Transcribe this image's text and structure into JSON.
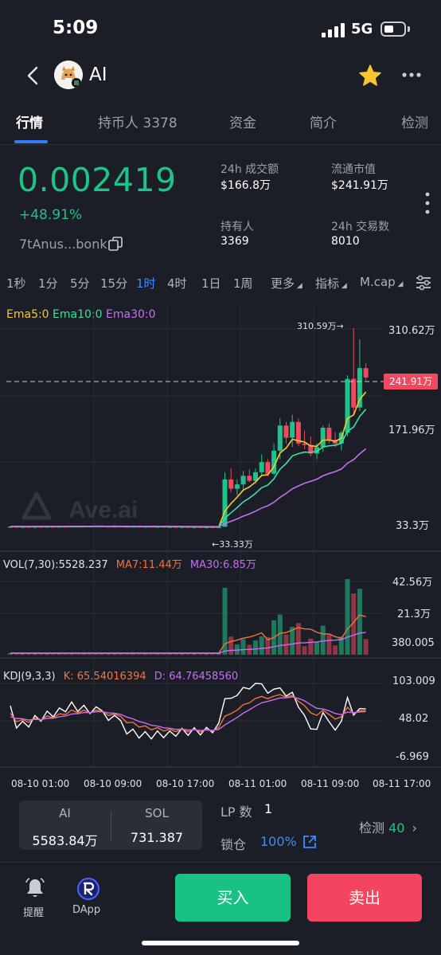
{
  "status": {
    "time": "5:09",
    "network": "5G"
  },
  "header": {
    "token": "AI",
    "icons": [
      "back-arrow-icon",
      "star-icon",
      "more-icon"
    ]
  },
  "tabs": [
    "行情",
    "持币人 3378",
    "资金",
    "简介",
    "检测"
  ],
  "summary": {
    "price": "0.002419",
    "change": "+48.91%",
    "address": "7tAnus...bonk",
    "stats": [
      {
        "label": "24h 成交额",
        "value": "$166.8万"
      },
      {
        "label": "流通市值",
        "value": "$241.91万"
      },
      {
        "label": "持有人",
        "value": "3369"
      },
      {
        "label": "24h 交易数",
        "value": "8010"
      }
    ]
  },
  "intervals": [
    "1秒",
    "1分",
    "5分",
    "15分",
    "1时",
    "4时",
    "1日",
    "1周",
    "更多",
    "指标",
    "M.cap"
  ],
  "active_interval": "1时",
  "colors": {
    "green": "#1fc28a",
    "red": "#f0485e",
    "blue": "#3d8bff",
    "ema5": "#f5c732",
    "ema10": "#38e0a4",
    "ema30": "#c56ff0",
    "ma7": "#f2733c",
    "ma30": "#c56ff0"
  },
  "chart": {
    "watermark": "Ave.ai",
    "legend": {
      "ema5": "Ema5:0",
      "ema10": "Ema10:0",
      "ema30": "Ema30:0"
    },
    "price_axis": [
      "310.62万",
      "171.96万",
      "33.3万"
    ],
    "current_tag": "241.91万",
    "high_marker": "310.59万→",
    "low_marker": "←33.33万",
    "vol_legend": {
      "vol": "VOL(7,30):5528.237",
      "ma7": "MA7:11.44万",
      "ma30": "MA30:6.85万"
    },
    "vol_axis": [
      "42.56万",
      "21.3万",
      "380.005"
    ],
    "kdj_legend": {
      "kdj": "KDJ(9,3,3)",
      "k": "K:  65.54016394",
      "d": "D:  64.76458560"
    },
    "kdj_axis": [
      "103.009",
      "48.02",
      "-6.969"
    ],
    "time_axis": [
      "08-10 01:00",
      "08-10 09:00",
      "08-10 17:00",
      "08-11 01:00",
      "08-11 09:00",
      "08-11 17:00"
    ]
  },
  "chart_data": {
    "type": "candlestick",
    "y_unit": "万 (market cap)",
    "x_labels": [
      "08-10 01:00",
      "08-10 09:00",
      "08-10 17:00",
      "08-11 01:00",
      "08-11 09:00",
      "08-11 17:00"
    ],
    "candles": [
      [
        34.0,
        34.6,
        33.8,
        34.4
      ],
      [
        34.4,
        34.8,
        33.9,
        34.0
      ],
      [
        34.0,
        34.5,
        33.7,
        34.3
      ],
      [
        34.3,
        34.7,
        33.9,
        34.1
      ],
      [
        34.1,
        34.6,
        33.8,
        34.4
      ],
      [
        34.4,
        34.9,
        34.0,
        34.2
      ],
      [
        34.2,
        34.6,
        33.9,
        34.5
      ],
      [
        34.5,
        35.0,
        34.1,
        34.3
      ],
      [
        34.3,
        34.8,
        33.9,
        34.6
      ],
      [
        34.6,
        35.0,
        34.2,
        34.4
      ],
      [
        34.4,
        34.9,
        34.0,
        34.7
      ],
      [
        34.7,
        35.2,
        34.3,
        34.5
      ],
      [
        34.5,
        35.0,
        34.1,
        34.8
      ],
      [
        34.8,
        35.3,
        34.4,
        34.6
      ],
      [
        34.6,
        35.1,
        34.2,
        34.9
      ],
      [
        34.9,
        35.3,
        34.5,
        34.7
      ],
      [
        34.7,
        35.1,
        34.3,
        34.5
      ],
      [
        34.5,
        34.9,
        34.1,
        34.8
      ],
      [
        34.8,
        35.2,
        34.4,
        34.6
      ],
      [
        34.6,
        35.0,
        34.2,
        34.4
      ],
      [
        34.4,
        34.8,
        34.0,
        34.6
      ],
      [
        34.6,
        35.0,
        34.2,
        34.3
      ],
      [
        34.3,
        34.7,
        33.9,
        34.5
      ],
      [
        34.5,
        34.9,
        34.1,
        34.2
      ],
      [
        34.2,
        34.6,
        33.8,
        34.4
      ],
      [
        34.4,
        34.8,
        34.0,
        34.1
      ],
      [
        34.1,
        34.5,
        33.7,
        34.3
      ],
      [
        34.3,
        34.7,
        33.9,
        34.0
      ],
      [
        34.0,
        34.4,
        33.6,
        34.2
      ],
      [
        34.2,
        34.6,
        33.8,
        33.9
      ],
      [
        33.9,
        34.3,
        33.5,
        34.1
      ],
      [
        34.1,
        34.5,
        33.7,
        33.8
      ],
      [
        33.8,
        34.2,
        33.4,
        34.0
      ],
      [
        34.0,
        34.3,
        33.33,
        33.7
      ],
      [
        33.7,
        34.1,
        33.4,
        34.0
      ],
      [
        34.0,
        110,
        33.9,
        100
      ],
      [
        100,
        115,
        82,
        87
      ],
      [
        87,
        100,
        78,
        93
      ],
      [
        93,
        112,
        86,
        105
      ],
      [
        105,
        114,
        96,
        98
      ],
      [
        98,
        115,
        94,
        110
      ],
      [
        110,
        135,
        104,
        124
      ],
      [
        124,
        128,
        104,
        108
      ],
      [
        108,
        150,
        106,
        140
      ],
      [
        140,
        185,
        128,
        175
      ],
      [
        175,
        180,
        150,
        158
      ],
      [
        158,
        190,
        145,
        180
      ],
      [
        180,
        185,
        146,
        150
      ],
      [
        150,
        168,
        142,
        148
      ],
      [
        148,
        160,
        132,
        136
      ],
      [
        136,
        150,
        128,
        145
      ],
      [
        145,
        175,
        138,
        172
      ],
      [
        172,
        178,
        150,
        155
      ],
      [
        155,
        166,
        145,
        150
      ],
      [
        150,
        168,
        140,
        165
      ],
      [
        165,
        245,
        160,
        240
      ],
      [
        240,
        310.59,
        190,
        200
      ],
      [
        200,
        295,
        195,
        255
      ],
      [
        255,
        262,
        238,
        241.91
      ]
    ],
    "volume_axis": [
      "42.56万",
      "21.3万",
      "380.005"
    ],
    "kdj": {
      "K": 65.54016394,
      "D": 64.7645856,
      "axis": [
        "103.009",
        "48.02",
        "-6.969"
      ]
    }
  },
  "footer": {
    "ai_label": "AI",
    "ai_value": "5583.84万",
    "sol_label": "SOL",
    "sol_value": "731.387",
    "lp_label": "LP 数",
    "lp_value": "1",
    "lock_label": "锁仓",
    "lock_value": "100%",
    "check_label": "检测",
    "check_value": "40",
    "alert_label": "提醒",
    "dapp_label": "DApp",
    "buy": "买入",
    "sell": "卖出"
  }
}
